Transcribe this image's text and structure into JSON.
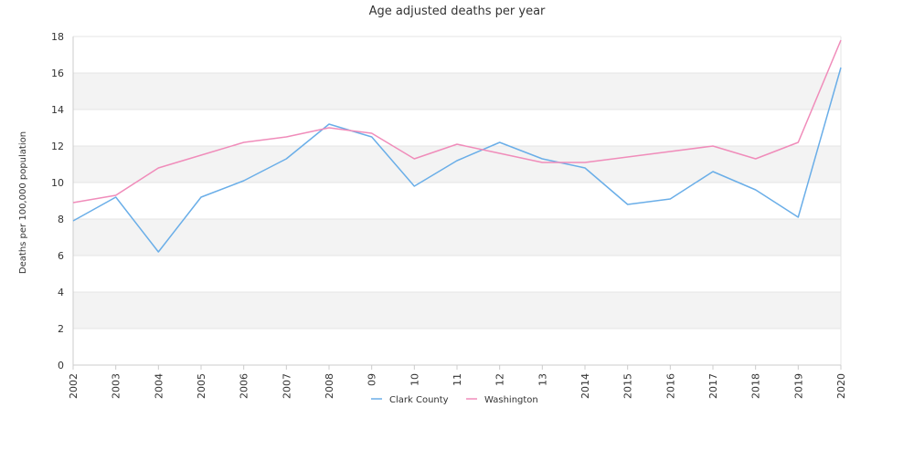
{
  "chart_data": {
    "type": "line",
    "title": "Age adjusted deaths per year",
    "ylabel": "Deaths per 100,000 population",
    "xlabel": "",
    "ylim": [
      0,
      18
    ],
    "yticks": [
      0,
      2,
      4,
      6,
      8,
      10,
      12,
      14,
      16,
      18
    ],
    "categories": [
      "2002",
      "2003",
      "2004",
      "2005",
      "2006",
      "2007",
      "2008",
      "09",
      "10",
      "11",
      "12",
      "13",
      "2014",
      "2015",
      "2016",
      "2017",
      "2018",
      "2019",
      "2020"
    ],
    "grid": "alternating horizontal bands",
    "legend_position": "bottom-center",
    "series": [
      {
        "name": "Clark County",
        "color": "#6aaee8",
        "values": [
          7.9,
          9.2,
          6.2,
          9.2,
          10.1,
          11.3,
          13.2,
          12.5,
          9.8,
          11.2,
          12.2,
          11.3,
          10.8,
          8.8,
          9.1,
          10.6,
          9.6,
          8.1,
          16.3
        ]
      },
      {
        "name": "Washington",
        "color": "#f08cba",
        "values": [
          8.9,
          9.3,
          10.8,
          11.5,
          12.2,
          12.5,
          13.0,
          12.7,
          11.3,
          12.1,
          11.6,
          11.1,
          11.1,
          11.4,
          11.7,
          12.0,
          11.3,
          12.2,
          17.8
        ]
      }
    ]
  }
}
